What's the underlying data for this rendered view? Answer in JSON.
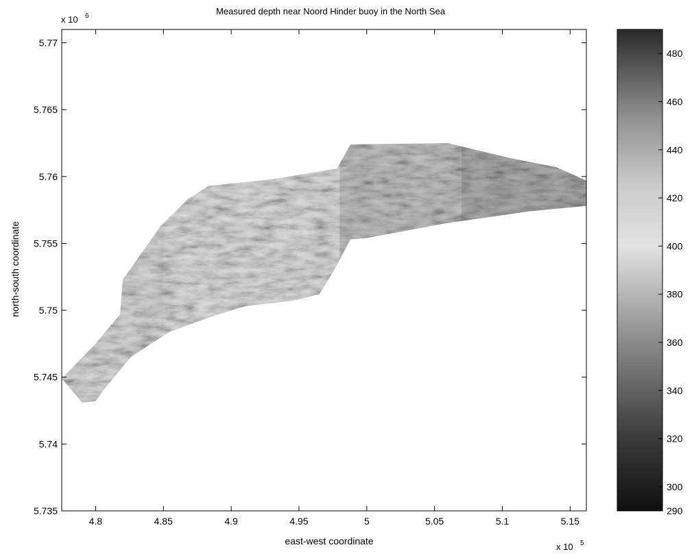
{
  "chart_data": {
    "type": "heatmap",
    "title": "Measured depth near Noord Hinder buoy in the North Sea",
    "xlabel": "east-west coordinate",
    "ylabel": "north-south coordinate",
    "x_multiplier_label": "x 10",
    "x_multiplier_exponent": "5",
    "y_multiplier_label": "x 10",
    "y_multiplier_exponent": "6",
    "xlim": [
      4.775,
      5.162
    ],
    "ylim": [
      5.735,
      5.771
    ],
    "x_ticks": [
      4.8,
      4.85,
      4.9,
      4.95,
      5.0,
      5.05,
      5.1,
      5.15
    ],
    "x_tick_labels": [
      "4.8",
      "4.85",
      "4.9",
      "4.95",
      "5",
      "5.05",
      "5.1",
      "5.15"
    ],
    "y_ticks": [
      5.735,
      5.74,
      5.745,
      5.75,
      5.755,
      5.76,
      5.765,
      5.77
    ],
    "y_tick_labels": [
      "5.735",
      "5.74",
      "5.745",
      "5.75",
      "5.755",
      "5.76",
      "5.765",
      "5.77"
    ],
    "colorbar": {
      "range": [
        290,
        490
      ],
      "ticks": [
        290,
        300,
        320,
        340,
        360,
        380,
        400,
        420,
        440,
        460,
        480
      ],
      "tick_labels": [
        "290",
        "300",
        "320",
        "340",
        "360",
        "380",
        "400",
        "420",
        "440",
        "460",
        "480"
      ],
      "colormap": "gray"
    },
    "survey_region": {
      "outline": [
        [
          4.79,
          5.7431
        ],
        [
          4.775,
          5.7449
        ],
        [
          4.8,
          5.7475
        ],
        [
          4.818,
          5.7497
        ],
        [
          4.82,
          5.7523
        ],
        [
          4.848,
          5.7563
        ],
        [
          4.868,
          5.7583
        ],
        [
          4.883,
          5.7593
        ],
        [
          4.93,
          5.7598
        ],
        [
          4.978,
          5.7606
        ],
        [
          4.988,
          5.7624
        ],
        [
          5.06,
          5.7625
        ],
        [
          5.105,
          5.7614
        ],
        [
          5.14,
          5.7607
        ],
        [
          5.162,
          5.7597
        ],
        [
          5.162,
          5.7578
        ],
        [
          5.12,
          5.7574
        ],
        [
          5.058,
          5.7565
        ],
        [
          5.0,
          5.7554
        ],
        [
          4.988,
          5.7553
        ],
        [
          4.976,
          5.753
        ],
        [
          4.965,
          5.7512
        ],
        [
          4.945,
          5.7507
        ],
        [
          4.91,
          5.7503
        ],
        [
          4.885,
          5.7495
        ],
        [
          4.855,
          5.7484
        ],
        [
          4.847,
          5.7479
        ],
        [
          4.826,
          5.7465
        ],
        [
          4.808,
          5.7443
        ],
        [
          4.8,
          5.7432
        ]
      ],
      "mean_depth_by_section": [
        {
          "x_from": 4.775,
          "x_to": 4.85,
          "depth": 395
        },
        {
          "x_from": 4.85,
          "x_to": 4.98,
          "depth": 405
        },
        {
          "x_from": 4.98,
          "x_to": 5.07,
          "depth": 430
        },
        {
          "x_from": 5.07,
          "x_to": 5.162,
          "depth": 440
        }
      ]
    }
  }
}
